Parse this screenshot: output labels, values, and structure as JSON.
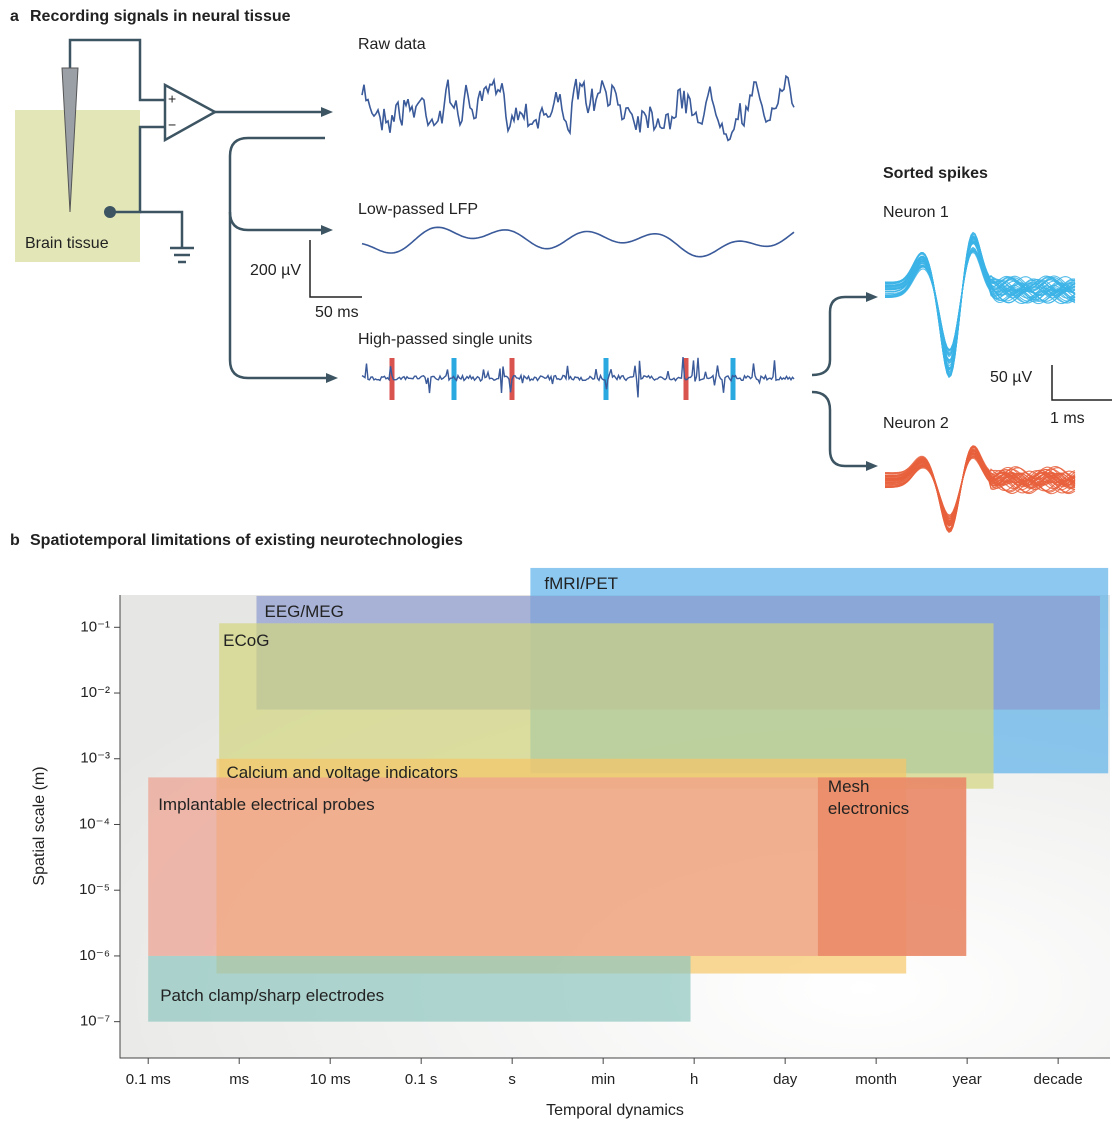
{
  "panel_a": {
    "label": "a",
    "title": "Recording signals in neural tissue",
    "tissue": "Brain tissue",
    "plus": "+",
    "minus": "−",
    "traces": [
      "Raw data",
      "Low-passed LFP",
      "High-passed single units"
    ],
    "scale_a": {
      "y": "200 µV",
      "x": "50 ms"
    },
    "sorted_title": "Sorted spikes",
    "neurons": [
      "Neuron 1",
      "Neuron 2"
    ],
    "scale_b": {
      "y": "50 µV",
      "x": "1 ms"
    }
  },
  "chart_data": {
    "type": "range",
    "label": "b",
    "title": "Spatiotemporal limitations of existing neurotechnologies",
    "x_label": "Temporal dynamics",
    "y_label": "Spatial scale (m)",
    "ylog": true,
    "xlim": [
      -0.31,
      10.57
    ],
    "ylim": [
      2.8e-08,
      0.31
    ],
    "xticks": [
      {
        "value": 0,
        "label": "0.1 ms"
      },
      {
        "value": 1,
        "label": "ms"
      },
      {
        "value": 2,
        "label": "10 ms"
      },
      {
        "value": 3,
        "label": "0.1 s"
      },
      {
        "value": 4,
        "label": "s"
      },
      {
        "value": 5,
        "label": "min"
      },
      {
        "value": 6,
        "label": "h"
      },
      {
        "value": 7,
        "label": "day"
      },
      {
        "value": 8,
        "label": "month"
      },
      {
        "value": 9,
        "label": "year"
      },
      {
        "value": 10,
        "label": "decade"
      }
    ],
    "yticks": [
      {
        "value": 0.1,
        "label": "10⁻¹"
      },
      {
        "value": 0.01,
        "label": "10⁻²"
      },
      {
        "value": 0.001,
        "label": "10⁻³"
      },
      {
        "value": 0.0001,
        "label": "10⁻⁴"
      },
      {
        "value": 1e-05,
        "label": "10⁻⁵"
      },
      {
        "value": 1e-06,
        "label": "10⁻⁶"
      },
      {
        "value": 1e-07,
        "label": "10⁻⁷"
      }
    ],
    "series": [
      {
        "name": "fMRI/PET",
        "color": "#5cb0ea",
        "x": [
          4.2,
          10.55
        ],
        "y": [
          0.0006,
          0.8
        ]
      },
      {
        "name": "EEG/MEG",
        "color": "#8c9bd0",
        "x": [
          1.19,
          10.46
        ],
        "y": [
          0.0056,
          0.3
        ]
      },
      {
        "name": "ECoG",
        "color": "#d2d67e",
        "x": [
          0.78,
          9.29
        ],
        "y": [
          0.00035,
          0.115
        ]
      },
      {
        "name": "Calcium and voltage indicators",
        "color": "#f6c668",
        "x": [
          0.75,
          8.33
        ],
        "y": [
          5.4e-07,
          0.001
        ]
      },
      {
        "name": "Implantable electrical probes",
        "color": "#eea08e",
        "x": [
          0,
          8.99
        ],
        "y": [
          1e-06,
          0.00052
        ]
      },
      {
        "name": "Mesh electronics",
        "color": "#e8825c",
        "x": [
          7.36,
          8.99
        ],
        "y": [
          1e-06,
          0.00052
        ]
      },
      {
        "name": "Patch clamp/sharp electrodes",
        "color": "#8fc6bf",
        "x": [
          0,
          5.96
        ],
        "y": [
          1e-07,
          1e-06
        ]
      }
    ]
  }
}
